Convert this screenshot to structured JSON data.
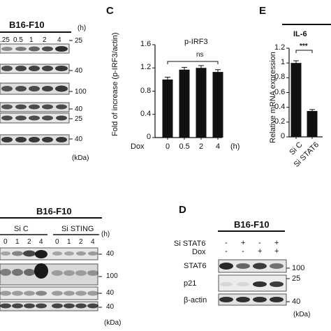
{
  "panel_a": {
    "title": "B16-F10",
    "h_unit": "(h)",
    "times": [
      ".25",
      "0.5",
      "1",
      "2",
      "4"
    ],
    "kda_markers": [
      "25",
      "40",
      "100",
      "40",
      "25",
      "40"
    ],
    "kda_unit": "(kDa)"
  },
  "panel_c": {
    "letter": "C",
    "chart_title": "p-IRF3",
    "ylabel": "Fold of increase (p-IRF3/actin)",
    "xlabel_prefix": "Dox",
    "x_unit": "(h)",
    "sig_label": "ns",
    "yticks": [
      "0",
      "0.4",
      "0.8",
      "1.2",
      "1.6"
    ]
  },
  "panel_e": {
    "letter": "E",
    "chart_title": "IL-6",
    "ylabel": "Relative mRNA expression",
    "sig_label": "***",
    "yticks": [
      "0",
      "0.2",
      "0.4",
      "0.6",
      "0.8",
      "1",
      "1.2"
    ]
  },
  "panel_b": {
    "title": "B16-F10",
    "group1": "Si C",
    "group2": "Si STING",
    "h_unit": "(h)",
    "times": [
      "0",
      "1",
      "2",
      "4",
      "0",
      "1",
      "2",
      "4"
    ],
    "kda_markers": [
      "40",
      "100",
      "40",
      "40"
    ],
    "kda_unit": "(kDa)"
  },
  "panel_d": {
    "letter": "D",
    "title": "B16-F10",
    "row1_label": "Si STAT6",
    "row2_label": "Dox",
    "row1_signs": [
      "-",
      "+",
      "-",
      "+"
    ],
    "row2_signs": [
      "-",
      "-",
      "+",
      "+"
    ],
    "proteins": [
      "STAT6",
      "p21",
      "β-actin"
    ],
    "kda_markers": [
      "100",
      "25",
      "40"
    ],
    "kda_unit": "(kDa)"
  },
  "chart_data": [
    {
      "type": "bar",
      "title": "p-IRF3",
      "xlabel": "Dox (h)",
      "ylabel": "Fold of increase (p-IRF3/actin)",
      "categories": [
        "0",
        "0.5",
        "2",
        "4"
      ],
      "values": [
        1.0,
        1.17,
        1.2,
        1.13
      ],
      "errors": [
        0.04,
        0.04,
        0.04,
        0.04
      ],
      "ylim": [
        0,
        1.6
      ],
      "annotation": "ns",
      "bar_color": "#111111"
    },
    {
      "type": "bar",
      "title": "IL-6",
      "xlabel": "",
      "ylabel": "Relative mRNA expression",
      "categories": [
        "Si C",
        "Si STAT6"
      ],
      "values": [
        1.0,
        0.35
      ],
      "errors": [
        0.03,
        0.02
      ],
      "ylim": [
        0,
        1.2
      ],
      "annotation": "***",
      "bar_color": "#111111"
    }
  ]
}
